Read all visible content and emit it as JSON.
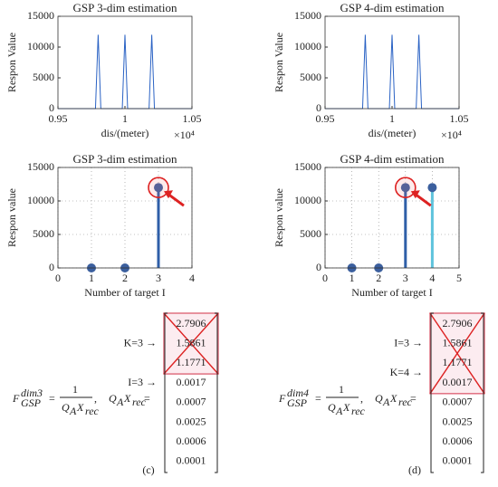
{
  "chart_data": [
    {
      "type": "line",
      "title": "GSP 3-dim estimation",
      "ylabel": "Respon Value",
      "xlabel": "dis/(meter)",
      "x_multiplier": "×10⁴",
      "x": [
        0.95,
        0.978,
        0.98,
        0.982,
        0.998,
        1,
        1.002,
        1.018,
        1.02,
        1.022,
        1.05
      ],
      "values": [
        0,
        0,
        12000,
        0,
        0,
        12000,
        0,
        0,
        12000,
        0,
        0
      ],
      "color": "#2a62c4",
      "xlim": [
        0.95,
        1.05
      ],
      "xticks": [
        0.95,
        1,
        1.05
      ],
      "ylim": [
        0,
        15000
      ],
      "yticks": [
        0,
        5000,
        10000,
        15000
      ],
      "grid": false
    },
    {
      "type": "line",
      "title": "GSP 4-dim estimation",
      "ylabel": "Respon Value",
      "xlabel": "dis/(meter)",
      "x_multiplier": "×10⁴",
      "x": [
        0.95,
        0.978,
        0.98,
        0.982,
        0.998,
        1,
        1.002,
        1.018,
        1.02,
        1.022,
        1.05
      ],
      "values": [
        0,
        0,
        12000,
        0,
        0,
        12000,
        0,
        0,
        12000,
        0,
        0
      ],
      "color": "#2a62c4",
      "xlim": [
        0.95,
        1.05
      ],
      "xticks": [
        0.95,
        1,
        1.05
      ],
      "ylim": [
        0,
        15000
      ],
      "yticks": [
        0,
        5000,
        10000,
        15000
      ],
      "grid": false
    },
    {
      "type": "stem",
      "title": "GSP 3-dim estimation",
      "ylabel": "Respon value",
      "xlabel": "Number of target I",
      "x": [
        1,
        2,
        3
      ],
      "values": [
        0,
        0,
        12000
      ],
      "colors": [
        "#2f5fa8",
        "#2f5fa8",
        "#2f5fa8"
      ],
      "marker_color": "#3b5f9e",
      "xlim": [
        0,
        4
      ],
      "xticks": [
        0,
        1,
        2,
        3,
        4
      ],
      "ylim": [
        0,
        15000
      ],
      "yticks": [
        0,
        5000,
        10000,
        15000
      ],
      "grid": true
    },
    {
      "type": "stem",
      "title": "GSP 4-dim estimation",
      "ylabel": "Respon value",
      "xlabel": "Number of target I",
      "x": [
        1,
        2,
        3,
        4
      ],
      "values": [
        0,
        0,
        12000,
        12000
      ],
      "colors": [
        "#2f5fa8",
        "#2f5fa8",
        "#2f5fa8",
        "#5ec3dc"
      ],
      "marker_color": "#3b5f9e",
      "xlim": [
        0,
        5
      ],
      "xticks": [
        0,
        1,
        2,
        3,
        4,
        5
      ],
      "ylim": [
        0,
        15000
      ],
      "yticks": [
        0,
        5000,
        10000,
        15000
      ],
      "grid": true
    }
  ],
  "equations": [
    {
      "caption": "(c)",
      "labels": [
        "K=3 →",
        "I=3 →"
      ],
      "formula": {
        "symbol": "F",
        "sub": "GSP",
        "sup": "dim3",
        "eq": "=",
        "num": "1",
        "den": [
          [
            "Q",
            "A"
          ],
          [
            "X",
            "rec"
          ]
        ],
        "comma": ",",
        "rhs": [
          [
            "Q",
            "A"
          ],
          [
            "X",
            "rec"
          ]
        ],
        "eq2": "="
      },
      "matrix": [
        2.7906,
        1.5861,
        1.1771,
        0.0017,
        0.0007,
        0.0025,
        0.0006,
        0.0001
      ]
    },
    {
      "caption": "(d)",
      "labels": [
        "I=3 →",
        "K=4 →"
      ],
      "formula": {
        "symbol": "F",
        "sub": "GSP",
        "sup": "dim4",
        "eq": "=",
        "num": "1",
        "den": [
          [
            "Q",
            "A"
          ],
          [
            "X",
            "rec"
          ]
        ],
        "comma": ",",
        "rhs": [
          [
            "Q",
            "A"
          ],
          [
            "X",
            "rec"
          ]
        ],
        "eq2": "="
      },
      "matrix": [
        2.7906,
        1.5861,
        1.1771,
        0.0017,
        0.0007,
        0.0025,
        0.0006,
        0.0001
      ]
    }
  ]
}
